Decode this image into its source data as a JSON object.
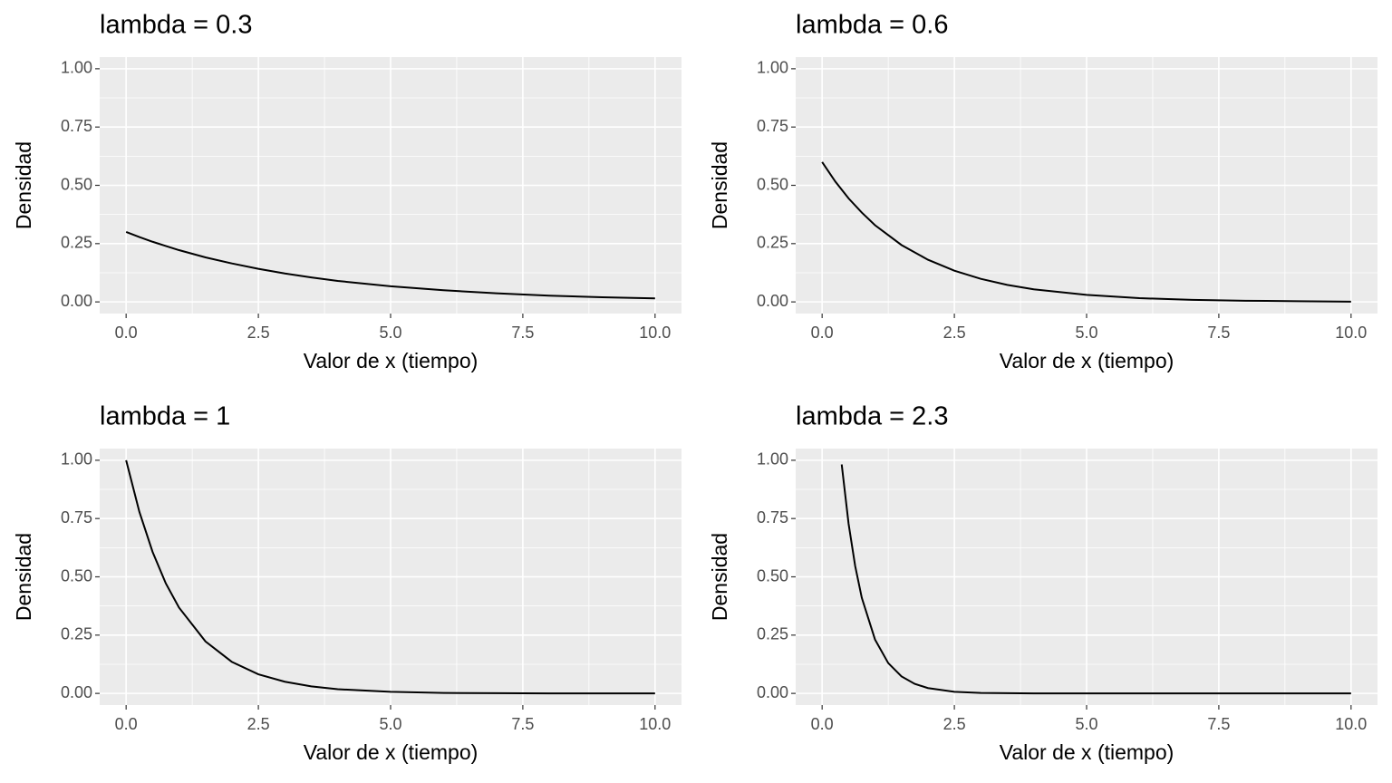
{
  "chart_data": [
    {
      "type": "line",
      "title": "lambda = 0.3",
      "x_label": "Valor de x (tiempo)",
      "y_label": "Densidad",
      "x": [
        0,
        0.25,
        0.5,
        0.75,
        1,
        1.5,
        2,
        2.5,
        3,
        3.5,
        4,
        5,
        6,
        7,
        8,
        9,
        10
      ],
      "values": [
        0.3,
        0.278,
        0.258,
        0.24,
        0.222,
        0.191,
        0.165,
        0.142,
        0.122,
        0.105,
        0.09,
        0.067,
        0.05,
        0.037,
        0.027,
        0.02,
        0.015
      ],
      "color": "#000000",
      "xlim": [
        -0.5,
        10.5
      ],
      "ylim": [
        -0.05,
        1.05
      ],
      "xticks": [
        {
          "value": 0,
          "label": "0.0"
        },
        2.5,
        {
          "value": 5,
          "label": "5.0"
        },
        7.5,
        {
          "value": 10,
          "label": "10.0"
        }
      ],
      "yticks": [
        {
          "value": 0,
          "label": "0.00"
        },
        0.25,
        {
          "value": 0.5,
          "label": "0.50"
        },
        0.75,
        {
          "value": 1,
          "label": "1.00"
        }
      ],
      "grid": true
    },
    {
      "type": "line",
      "title": "lambda = 0.6",
      "x_label": "Valor de x (tiempo)",
      "y_label": "Densidad",
      "x": [
        0,
        0.25,
        0.5,
        0.75,
        1,
        1.5,
        2,
        2.5,
        3,
        3.5,
        4,
        5,
        6,
        7,
        8,
        9,
        10
      ],
      "values": [
        0.6,
        0.516,
        0.444,
        0.383,
        0.329,
        0.244,
        0.181,
        0.134,
        0.099,
        0.073,
        0.054,
        0.03,
        0.016,
        0.009,
        0.005,
        0.003,
        0.001
      ],
      "color": "#000000",
      "xlim": [
        -0.5,
        10.5
      ],
      "ylim": [
        -0.05,
        1.05
      ],
      "xticks": [
        {
          "value": 0,
          "label": "0.0"
        },
        2.5,
        {
          "value": 5,
          "label": "5.0"
        },
        7.5,
        {
          "value": 10,
          "label": "10.0"
        }
      ],
      "yticks": [
        {
          "value": 0,
          "label": "0.00"
        },
        0.25,
        {
          "value": 0.5,
          "label": "0.50"
        },
        0.75,
        {
          "value": 1,
          "label": "1.00"
        }
      ],
      "grid": true
    },
    {
      "type": "line",
      "title": "lambda = 1",
      "x_label": "Valor de x (tiempo)",
      "y_label": "Densidad",
      "x": [
        0,
        0.25,
        0.5,
        0.75,
        1,
        1.5,
        2,
        2.5,
        3,
        3.5,
        4,
        5,
        6,
        7,
        8,
        9,
        10
      ],
      "values": [
        1,
        0.779,
        0.607,
        0.472,
        0.368,
        0.223,
        0.135,
        0.082,
        0.05,
        0.03,
        0.018,
        0.007,
        0.002,
        0.001,
        0,
        0,
        0
      ],
      "color": "#000000",
      "xlim": [
        -0.5,
        10.5
      ],
      "ylim": [
        -0.05,
        1.05
      ],
      "xticks": [
        {
          "value": 0,
          "label": "0.0"
        },
        2.5,
        {
          "value": 5,
          "label": "5.0"
        },
        7.5,
        {
          "value": 10,
          "label": "10.0"
        }
      ],
      "yticks": [
        {
          "value": 0,
          "label": "0.00"
        },
        0.25,
        {
          "value": 0.5,
          "label": "0.50"
        },
        0.75,
        {
          "value": 1,
          "label": "1.00"
        }
      ],
      "grid": true
    },
    {
      "type": "line",
      "title": "lambda = 2.3",
      "x_label": "Valor de x (tiempo)",
      "y_label": "Densidad",
      "x": [
        0.37,
        0.5,
        0.625,
        0.75,
        1,
        1.25,
        1.5,
        1.75,
        2,
        2.5,
        3,
        4,
        5,
        7.5,
        10
      ],
      "values": [
        0.982,
        0.728,
        0.546,
        0.41,
        0.231,
        0.13,
        0.073,
        0.041,
        0.023,
        0.007,
        0.002,
        0,
        0,
        0,
        0
      ],
      "color": "#000000",
      "xlim": [
        -0.5,
        10.5
      ],
      "ylim": [
        -0.05,
        1.05
      ],
      "xticks": [
        {
          "value": 0,
          "label": "0.0"
        },
        2.5,
        {
          "value": 5,
          "label": "5.0"
        },
        7.5,
        {
          "value": 10,
          "label": "10.0"
        }
      ],
      "yticks": [
        {
          "value": 0,
          "label": "0.00"
        },
        0.25,
        {
          "value": 0.5,
          "label": "0.50"
        },
        0.75,
        {
          "value": 1,
          "label": "1.00"
        }
      ],
      "grid": true
    }
  ]
}
